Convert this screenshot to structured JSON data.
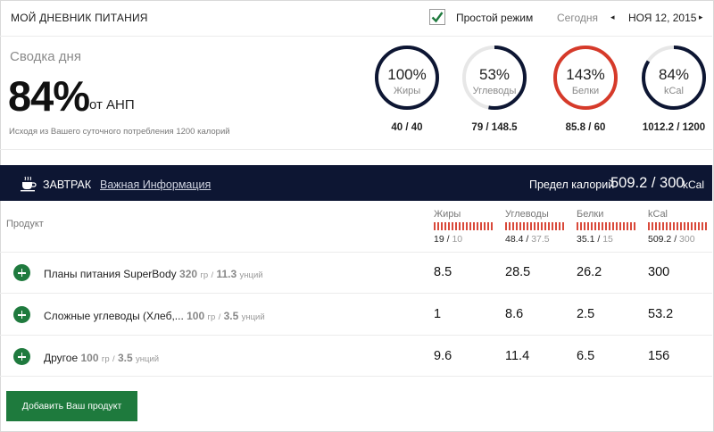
{
  "header": {
    "title": "МОЙ ДНЕВНИК ПИТАНИЯ",
    "simple_mode_label": "Простой режим",
    "simple_mode_checked": true,
    "today_label": "Сегодня",
    "prev_icon": "◂",
    "next_icon": "▸",
    "date": "НОЯ 12, 2015"
  },
  "summary": {
    "title": "Сводка дня",
    "percent": "84%",
    "of_label": "от АНП",
    "basis_text": "Исходя из Вашего суточного потребления 1200 калорий",
    "rings": [
      {
        "pct": "100%",
        "label": "Жиры",
        "value": "40 / 40",
        "fraction": 1.0,
        "color": "#0d1633"
      },
      {
        "pct": "53%",
        "label": "Углеводы",
        "value": "79 / 148.5",
        "fraction": 0.53,
        "color": "#0d1633"
      },
      {
        "pct": "143%",
        "label": "Белки",
        "value": "85.8 / 60",
        "fraction": 1.0,
        "color": "#d63a2a"
      },
      {
        "pct": "84%",
        "label": "kCal",
        "value": "1012.2 / 1200",
        "fraction": 0.84,
        "color": "#0d1633"
      }
    ]
  },
  "meal": {
    "icon": "coffee-cup-icon",
    "name": "ЗАВТРАК",
    "info_link": "Важная Информация",
    "limit_label": "Предел калорий",
    "limit_value": "509.2 / 300",
    "limit_unit": "kCal"
  },
  "table": {
    "product_header": "Продукт",
    "columns": [
      {
        "label": "Жиры",
        "eaten": "19",
        "limit": "10"
      },
      {
        "label": "Углеводы",
        "eaten": "48.4",
        "limit": "37.5"
      },
      {
        "label": "Белки",
        "eaten": "35.1",
        "limit": "15"
      },
      {
        "label": "kCal",
        "eaten": "509.2",
        "limit": "300"
      }
    ],
    "rows": [
      {
        "name": "Планы питания SuperBody",
        "grams": "320",
        "gr": "гр",
        "portions": "11.3",
        "unit": "унций",
        "values": [
          "8.5",
          "28.5",
          "26.2",
          "300"
        ]
      },
      {
        "name": "Сложные углеводы (Хлеб,...",
        "grams": "100",
        "gr": "гр",
        "portions": "3.5",
        "unit": "унций",
        "values": [
          "1",
          "8.6",
          "2.5",
          "53.2"
        ]
      },
      {
        "name": "Другое",
        "grams": "100",
        "gr": "гр",
        "portions": "3.5",
        "unit": "унций",
        "values": [
          "9.6",
          "11.4",
          "6.5",
          "156"
        ]
      }
    ]
  },
  "add_button_label": "Добавить Ваш продукт"
}
